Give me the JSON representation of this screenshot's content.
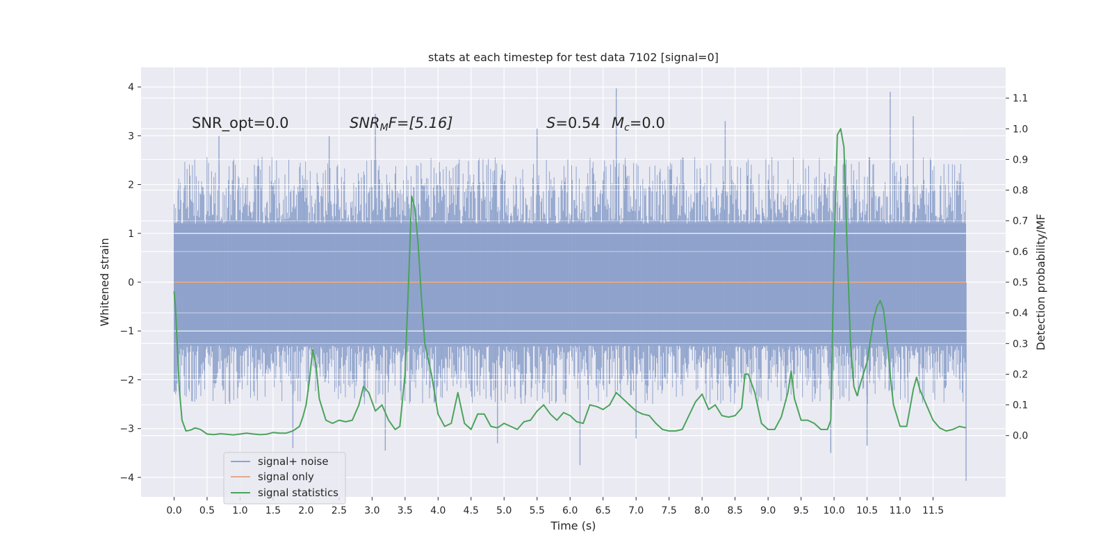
{
  "chart_data": {
    "type": "line",
    "title": "stats at each timestep for test data 7102 [signal=0]",
    "xlabel": "Time (s)",
    "ylabel": "Whitened strain",
    "ylabel_right": "Detection probability/MF",
    "xlim": [
      -0.5,
      12.6
    ],
    "ylim": [
      -4.4,
      4.4
    ],
    "ylim_right": [
      -0.2,
      1.2
    ],
    "x_ticks": [
      0.0,
      0.5,
      1.0,
      1.5,
      2.0,
      2.5,
      3.0,
      3.5,
      4.0,
      4.5,
      5.0,
      5.5,
      6.0,
      6.5,
      7.0,
      7.5,
      8.0,
      8.5,
      9.0,
      9.5,
      10.0,
      10.5,
      11.0,
      11.5
    ],
    "x_tick_labels": [
      "0.0",
      "0.5",
      "1.0",
      "1.5",
      "2.0",
      "2.5",
      "3.0",
      "3.5",
      "4.0",
      "4.5",
      "5.0",
      "5.5",
      "6.0",
      "6.5",
      "7.0",
      "7.5",
      "8.0",
      "8.5",
      "9.0",
      "9.5",
      "10.0",
      "10.5",
      "11.0",
      "11.5"
    ],
    "y_ticks": [
      4,
      3,
      2,
      1,
      0,
      -1,
      -2,
      -3,
      -4
    ],
    "y_tick_labels": [
      "4",
      "3",
      "2",
      "1",
      "0",
      "−1",
      "−2",
      "−3",
      "−4"
    ],
    "y_ticks_right": [
      1.1,
      1.0,
      0.9,
      0.8,
      0.7,
      0.6,
      0.5,
      0.4,
      0.3,
      0.2,
      0.1,
      0.0
    ],
    "y_tick_labels_right": [
      "1.1",
      "1.0",
      "0.9",
      "0.8",
      "0.7",
      "0.6",
      "0.5",
      "0.4",
      "0.3",
      "0.2",
      "0.1",
      "0.0"
    ],
    "grid": true,
    "legend_position": "lower-left",
    "annotations": {
      "snr_opt": "SNR_opt=0.0",
      "snr_mf_base": "SNR",
      "snr_mf_sub": "M",
      "snr_mf_rest": "F=[5.16]",
      "s_label": "S",
      "s_value": "=0.54",
      "mc_label": "M",
      "mc_sub": "c",
      "mc_value": "=0.0"
    },
    "series": [
      {
        "name": "signal+ noise",
        "color": "#8fa3cc",
        "kind": "noise_band",
        "x_range": [
          0.0,
          12.0
        ],
        "core_range": [
          -1.3,
          1.2
        ],
        "typical_extremes": [
          -2.5,
          2.5
        ],
        "max": 3.97,
        "min": -4.07
      },
      {
        "name": "signal only",
        "color": "#e0a88a",
        "x": [
          0.0,
          12.0
        ],
        "values": [
          0.0,
          0.0
        ]
      },
      {
        "name": "signal statistics",
        "color": "#4aa35a",
        "axis": "right",
        "x": [
          0.0,
          0.02,
          0.08,
          0.12,
          0.18,
          0.25,
          0.32,
          0.4,
          0.5,
          0.6,
          0.7,
          0.8,
          0.9,
          1.0,
          1.1,
          1.2,
          1.3,
          1.4,
          1.5,
          1.6,
          1.7,
          1.8,
          1.9,
          1.95,
          2.0,
          2.05,
          2.1,
          2.15,
          2.2,
          2.3,
          2.4,
          2.5,
          2.6,
          2.7,
          2.8,
          2.87,
          2.95,
          3.05,
          3.15,
          3.25,
          3.35,
          3.42,
          3.5,
          3.57,
          3.6,
          3.65,
          3.7,
          3.75,
          3.8,
          3.9,
          4.0,
          4.1,
          4.2,
          4.3,
          4.4,
          4.5,
          4.6,
          4.7,
          4.8,
          4.9,
          5.0,
          5.1,
          5.2,
          5.3,
          5.4,
          5.5,
          5.6,
          5.7,
          5.8,
          5.9,
          6.0,
          6.1,
          6.2,
          6.3,
          6.4,
          6.5,
          6.6,
          6.7,
          6.8,
          6.9,
          7.0,
          7.1,
          7.2,
          7.3,
          7.4,
          7.5,
          7.6,
          7.7,
          7.8,
          7.9,
          8.0,
          8.1,
          8.2,
          8.3,
          8.4,
          8.5,
          8.6,
          8.65,
          8.7,
          8.8,
          8.9,
          9.0,
          9.1,
          9.2,
          9.3,
          9.35,
          9.4,
          9.5,
          9.6,
          9.7,
          9.8,
          9.9,
          9.95,
          10.0,
          10.05,
          10.1,
          10.15,
          10.2,
          10.25,
          10.3,
          10.35,
          10.4,
          10.5,
          10.6,
          10.65,
          10.7,
          10.75,
          10.8,
          10.85,
          10.9,
          11.0,
          11.1,
          11.2,
          11.25,
          11.3,
          11.4,
          11.5,
          11.6,
          11.7,
          11.8,
          11.9,
          12.0
        ],
        "values": [
          0.47,
          0.42,
          0.15,
          0.05,
          0.015,
          0.018,
          0.025,
          0.02,
          0.005,
          0.003,
          0.006,
          0.004,
          0.002,
          0.005,
          0.008,
          0.005,
          0.003,
          0.004,
          0.01,
          0.008,
          0.008,
          0.015,
          0.03,
          0.06,
          0.1,
          0.18,
          0.28,
          0.23,
          0.12,
          0.05,
          0.04,
          0.05,
          0.045,
          0.05,
          0.1,
          0.16,
          0.14,
          0.08,
          0.1,
          0.05,
          0.02,
          0.03,
          0.2,
          0.6,
          0.78,
          0.74,
          0.62,
          0.44,
          0.3,
          0.2,
          0.07,
          0.03,
          0.04,
          0.14,
          0.04,
          0.02,
          0.07,
          0.07,
          0.03,
          0.025,
          0.04,
          0.03,
          0.02,
          0.045,
          0.05,
          0.08,
          0.1,
          0.07,
          0.05,
          0.075,
          0.065,
          0.045,
          0.04,
          0.1,
          0.095,
          0.085,
          0.1,
          0.14,
          0.12,
          0.1,
          0.08,
          0.07,
          0.065,
          0.04,
          0.02,
          0.015,
          0.015,
          0.02,
          0.065,
          0.11,
          0.135,
          0.085,
          0.1,
          0.065,
          0.06,
          0.065,
          0.09,
          0.2,
          0.2,
          0.14,
          0.04,
          0.02,
          0.02,
          0.06,
          0.14,
          0.21,
          0.12,
          0.05,
          0.05,
          0.04,
          0.02,
          0.02,
          0.05,
          0.6,
          0.98,
          1.0,
          0.94,
          0.6,
          0.3,
          0.16,
          0.13,
          0.17,
          0.24,
          0.38,
          0.42,
          0.44,
          0.41,
          0.32,
          0.2,
          0.1,
          0.03,
          0.03,
          0.15,
          0.19,
          0.15,
          0.1,
          0.05,
          0.025,
          0.015,
          0.02,
          0.03,
          0.025
        ]
      }
    ]
  }
}
